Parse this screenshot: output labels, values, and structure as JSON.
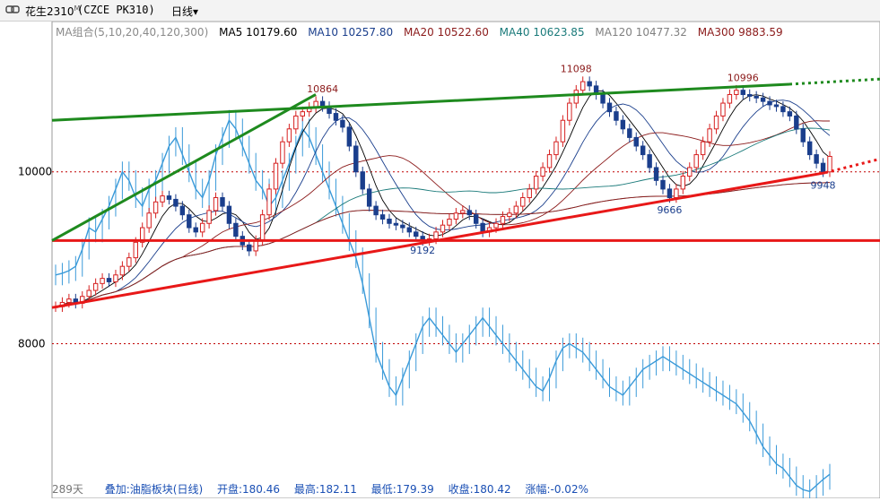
{
  "header": {
    "instrument_name": "花生2310",
    "superscript": "M",
    "instrument_code": "(CZCE PK310)",
    "period_label": "日线",
    "dropdown_glyph": "▾"
  },
  "legend": {
    "group": "MA组合(5,10,20,40,120,300)",
    "items": [
      {
        "label": "MA5 10179.60",
        "color": "#000000"
      },
      {
        "label": "MA10 10257.80",
        "color": "#1a3e8c"
      },
      {
        "label": "MA20 10522.60",
        "color": "#8b1a1a"
      },
      {
        "label": "MA40 10623.85",
        "color": "#1a7a7a"
      },
      {
        "label": "MA120 10477.32",
        "color": "#808080"
      },
      {
        "label": "MA300 9883.59",
        "color": "#8b1a1a"
      }
    ]
  },
  "footer": {
    "days": "289天",
    "overlay": "叠加:油脂板块(日线)",
    "open": "开盘:180.46",
    "high": "最高:182.11",
    "low": "最低:179.39",
    "close": "收盘:180.42",
    "change": "涨幅:-0.02%"
  },
  "colors": {
    "up": "#d62020",
    "down": "#1a3e8c",
    "overlay": "#3a9ad9",
    "trend_green": "#1e8a1e",
    "trend_red": "#e81818",
    "grid": "#c00000"
  },
  "chart_data": {
    "type": "candlestick",
    "y_ticks": [
      10000,
      8000
    ],
    "ylim": [
      6200,
      11750
    ],
    "horizontal_levels": [
      9200
    ],
    "annotations": [
      {
        "label": "10864",
        "value": 10864,
        "color": "#8b1a1a"
      },
      {
        "label": "11098",
        "value": 11098,
        "color": "#8b1a1a"
      },
      {
        "label": "10996",
        "value": 10996,
        "color": "#8b1a1a"
      },
      {
        "label": "9192",
        "value": 9192,
        "color": "#1a3e8c"
      },
      {
        "label": "9666",
        "value": 9666,
        "color": "#1a3e8c"
      },
      {
        "label": "9948",
        "value": 9948,
        "color": "#1a3e8c"
      }
    ],
    "series": [
      {
        "name": "花生2310",
        "close": [
          8430,
          8480,
          8520,
          8470,
          8550,
          8620,
          8700,
          8760,
          8720,
          8800,
          8900,
          9000,
          9180,
          9350,
          9520,
          9650,
          9720,
          9680,
          9600,
          9500,
          9350,
          9300,
          9400,
          9550,
          9700,
          9600,
          9400,
          9250,
          9150,
          9080,
          9200,
          9500,
          9800,
          10100,
          10350,
          10500,
          10650,
          10700,
          10750,
          10820,
          10760,
          10680,
          10600,
          10520,
          10300,
          10000,
          9800,
          9600,
          9500,
          9450,
          9400,
          9380,
          9350,
          9300,
          9250,
          9200,
          9220,
          9300,
          9380,
          9450,
          9520,
          9550,
          9500,
          9400,
          9300,
          9350,
          9400,
          9480,
          9520,
          9600,
          9700,
          9800,
          9950,
          10050,
          10200,
          10350,
          10600,
          10800,
          10950,
          11050,
          11000,
          10900,
          10800,
          10700,
          10600,
          10500,
          10400,
          10300,
          10200,
          10050,
          9900,
          9800,
          9700,
          9800,
          9950,
          10050,
          10200,
          10350,
          10500,
          10650,
          10800,
          10900,
          10950,
          10900,
          10880,
          10860,
          10820,
          10780,
          10760,
          10700,
          10650,
          10500,
          10350,
          10200,
          10100,
          10000,
          10180
        ]
      },
      {
        "name": "油脂板块",
        "close": [
          8800,
          8820,
          8850,
          8900,
          9100,
          9350,
          9300,
          9450,
          9600,
          9800,
          10000,
          9900,
          9700,
          9600,
          9800,
          9900,
          10100,
          10300,
          10400,
          10200,
          10000,
          9800,
          9700,
          9900,
          10200,
          10400,
          10600,
          10500,
          10300,
          10100,
          9900,
          9800,
          9600,
          9700,
          9900,
          10100,
          10300,
          10500,
          10400,
          10200,
          10000,
          9800,
          9600,
          9400,
          9200,
          9000,
          8700,
          8300,
          7900,
          7700,
          7500,
          7400,
          7600,
          7800,
          8000,
          8200,
          8300,
          8200,
          8100,
          8000,
          7900,
          8000,
          8100,
          8200,
          8300,
          8200,
          8100,
          8000,
          7900,
          7800,
          7700,
          7600,
          7500,
          7450,
          7600,
          7800,
          7950,
          8000,
          7950,
          7900,
          7800,
          7700,
          7600,
          7500,
          7450,
          7400,
          7500,
          7600,
          7700,
          7750,
          7800,
          7850,
          7800,
          7750,
          7700,
          7650,
          7600,
          7550,
          7500,
          7450,
          7400,
          7350,
          7300,
          7200,
          7100,
          6950,
          6800,
          6700,
          6600,
          6550,
          6450,
          6350,
          6300,
          6280,
          6350,
          6420,
          6480
        ]
      }
    ]
  }
}
